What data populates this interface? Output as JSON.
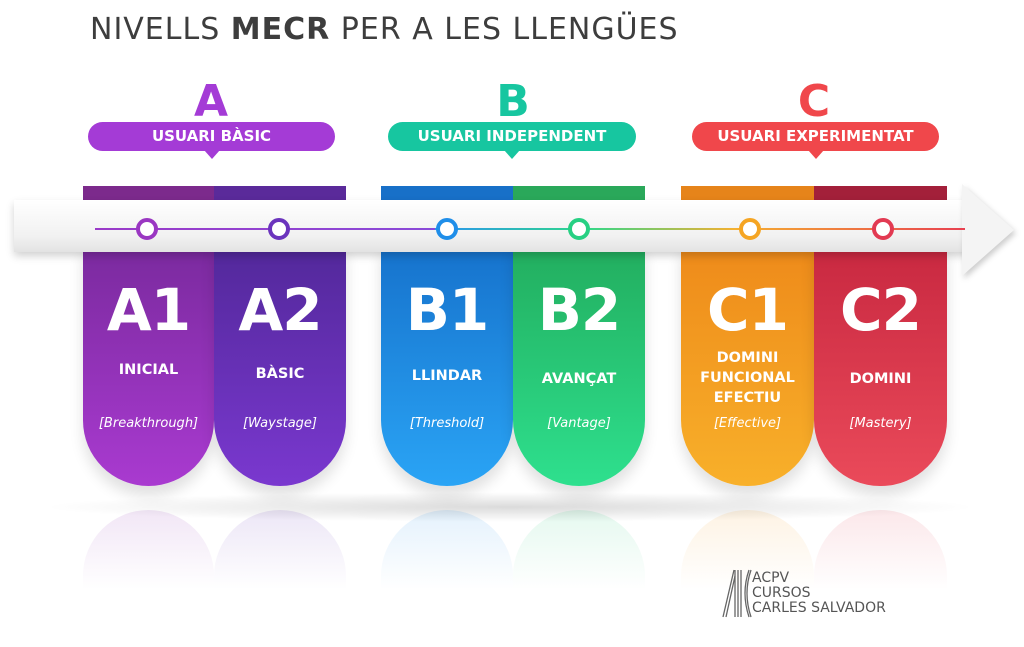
{
  "title": {
    "prefix": "NIVELLS ",
    "bold": "MECR",
    "suffix": " PER A LES LLENGÜES"
  },
  "groups": [
    {
      "letter": "A",
      "label": "USUARI BÀSIC",
      "color": "#a43bd6"
    },
    {
      "letter": "B",
      "label": "USUARI INDEPENDENT",
      "color": "#17c6a0"
    },
    {
      "letter": "C",
      "label": "USUARI EXPERIMENTAT",
      "color": "#f0474b"
    }
  ],
  "levels": [
    {
      "code": "A1",
      "name": "INICIAL",
      "english": "[Breakthrough]",
      "color": "#8e2fb2"
    },
    {
      "code": "A2",
      "name": "BÀSIC",
      "english": "[Waystage]",
      "color": "#6330b6"
    },
    {
      "code": "B1",
      "name": "LLINDAR",
      "english": "[Threshold]",
      "color": "#1f8ee9"
    },
    {
      "code": "B2",
      "name": "AVANÇAT",
      "english": "[Vantage]",
      "color": "#25c97a"
    },
    {
      "code": "C1",
      "name": "DOMINI FUNCIONAL EFECTIU",
      "name_lines": [
        "DOMINI",
        "FUNCIONAL",
        "EFECTIU"
      ],
      "english": "[Effective]",
      "color": "#f39b1e"
    },
    {
      "code": "C2",
      "name": "DOMINI",
      "english": "[Mastery]",
      "color": "#e13a4f"
    }
  ],
  "logo": {
    "lines": [
      "ACPV",
      "CURSOS",
      "CARLES SALVADOR"
    ]
  }
}
